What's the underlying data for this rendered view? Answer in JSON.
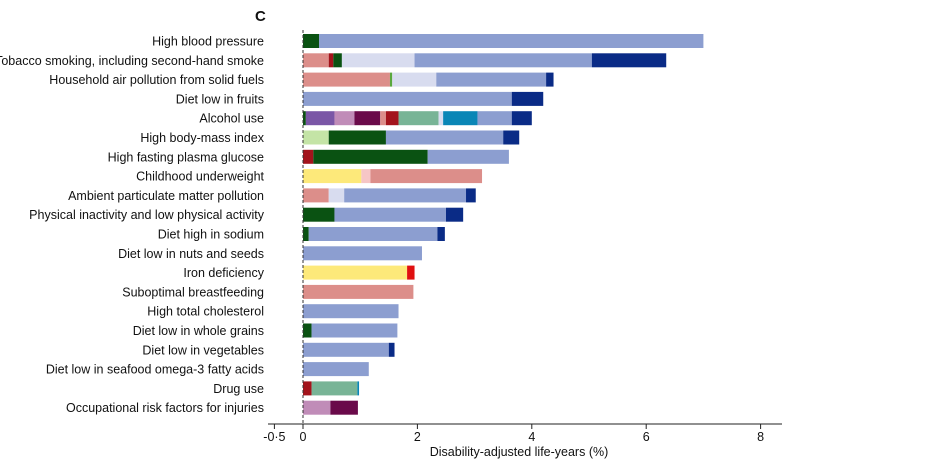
{
  "chart_data": {
    "type": "bar",
    "orientation": "horizontal",
    "stacked": true,
    "panel_label": "C",
    "title": "",
    "xlabel": "Disability-adjusted life-years (%)",
    "ylabel": "",
    "xlim": [
      -0.5,
      8.4
    ],
    "xticks": [
      -0.5,
      0,
      2,
      4,
      6,
      8
    ],
    "xtick_labels": [
      "-0·5",
      "0",
      "2",
      "4",
      "6",
      "8"
    ],
    "legend": "none",
    "segment_colors": {
      "dark_green": "#0a5212",
      "steel_blue": "#8c9ed0",
      "navy": "#0a2b86",
      "salmon": "#dc8e8a",
      "crimson": "#a3141c",
      "lavender": "#d8dcef",
      "mint_green": "#c4e4a6",
      "grass_green": "#5aa83e",
      "purple": "#7a56a6",
      "mauve": "#c08cb8",
      "plum": "#6a0a4a",
      "sage": "#78b496",
      "teal": "#0a86b6",
      "yellow": "#fde97a",
      "pink_pale": "#f6c6c6",
      "red": "#e01010"
    },
    "categories": [
      {
        "label": "High blood pressure",
        "segments": [
          {
            "color": "#0a5212",
            "value": 0.28
          },
          {
            "color": "#8c9ed0",
            "value": 6.72
          }
        ]
      },
      {
        "label": "Tobacco smoking, including second-hand smoke",
        "segments": [
          {
            "color": "#dc8e8a",
            "value": 0.45
          },
          {
            "color": "#a3141c",
            "value": 0.08
          },
          {
            "color": "#0a5212",
            "value": 0.15
          },
          {
            "color": "#d8dcef",
            "value": 1.27
          },
          {
            "color": "#8c9ed0",
            "value": 3.1
          },
          {
            "color": "#0a2b86",
            "value": 1.3
          }
        ]
      },
      {
        "label": "Household air pollution from solid fuels",
        "segments": [
          {
            "color": "#dc8e8a",
            "value": 1.52
          },
          {
            "color": "#5aa83e",
            "value": 0.04
          },
          {
            "color": "#d8dcef",
            "value": 0.77
          },
          {
            "color": "#8c9ed0",
            "value": 1.92
          },
          {
            "color": "#0a2b86",
            "value": 0.13
          }
        ]
      },
      {
        "label": "Diet low in fruits",
        "segments": [
          {
            "color": "#8c9ed0",
            "value": 3.65
          },
          {
            "color": "#0a2b86",
            "value": 0.55
          }
        ]
      },
      {
        "label": "Alcohol use",
        "segments": [
          {
            "color": "#0a5212",
            "value": 0.05
          },
          {
            "color": "#7a56a6",
            "value": 0.5
          },
          {
            "color": "#c08cb8",
            "value": 0.35
          },
          {
            "color": "#6a0a4a",
            "value": 0.45
          },
          {
            "color": "#dc8e8a",
            "value": 0.1
          },
          {
            "color": "#a3141c",
            "value": 0.22
          },
          {
            "color": "#78b496",
            "value": 0.7
          },
          {
            "color": "#d8dcef",
            "value": 0.08
          },
          {
            "color": "#0a86b6",
            "value": 0.6
          },
          {
            "color": "#8c9ed0",
            "value": 0.6
          },
          {
            "color": "#0a2b86",
            "value": 0.35
          }
        ]
      },
      {
        "label": "High body-mass index",
        "segments": [
          {
            "color": "#c4e4a6",
            "value": 0.45
          },
          {
            "color": "#0a5212",
            "value": 1.0
          },
          {
            "color": "#8c9ed0",
            "value": 2.05
          },
          {
            "color": "#0a2b86",
            "value": 0.28
          }
        ]
      },
      {
        "label": "High fasting plasma glucose",
        "segments": [
          {
            "color": "#a3141c",
            "value": 0.18
          },
          {
            "color": "#0a5212",
            "value": 2.0
          },
          {
            "color": "#8c9ed0",
            "value": 1.42
          }
        ]
      },
      {
        "label": "Childhood underweight",
        "segments": [
          {
            "color": "#fde97a",
            "value": 1.02
          },
          {
            "color": "#f6c6c6",
            "value": 0.16
          },
          {
            "color": "#dc8e8a",
            "value": 1.95
          }
        ]
      },
      {
        "label": "Ambient particulate matter pollution",
        "segments": [
          {
            "color": "#dc8e8a",
            "value": 0.45
          },
          {
            "color": "#d8dcef",
            "value": 0.27
          },
          {
            "color": "#8c9ed0",
            "value": 2.13
          },
          {
            "color": "#0a2b86",
            "value": 0.17
          }
        ]
      },
      {
        "label": "Physical inactivity and low physical activity",
        "segments": [
          {
            "color": "#0a5212",
            "value": 0.55
          },
          {
            "color": "#8c9ed0",
            "value": 1.95
          },
          {
            "color": "#0a2b86",
            "value": 0.3
          }
        ]
      },
      {
        "label": "Diet high in sodium",
        "segments": [
          {
            "color": "#0a5212",
            "value": 0.1
          },
          {
            "color": "#8c9ed0",
            "value": 2.25
          },
          {
            "color": "#0a2b86",
            "value": 0.13
          }
        ]
      },
      {
        "label": "Diet low in nuts and seeds",
        "segments": [
          {
            "color": "#8c9ed0",
            "value": 2.08
          }
        ]
      },
      {
        "label": "Iron deficiency",
        "segments": [
          {
            "color": "#fde97a",
            "value": 1.82
          },
          {
            "color": "#e01010",
            "value": 0.13
          }
        ]
      },
      {
        "label": "Suboptimal breastfeeding",
        "segments": [
          {
            "color": "#dc8e8a",
            "value": 1.93
          }
        ]
      },
      {
        "label": "High total cholesterol",
        "segments": [
          {
            "color": "#8c9ed0",
            "value": 1.67
          }
        ]
      },
      {
        "label": "Diet low in whole grains",
        "segments": [
          {
            "color": "#0a5212",
            "value": 0.15
          },
          {
            "color": "#8c9ed0",
            "value": 1.5
          }
        ]
      },
      {
        "label": "Diet low in vegetables",
        "segments": [
          {
            "color": "#8c9ed0",
            "value": 1.5
          },
          {
            "color": "#0a2b86",
            "value": 0.1
          }
        ]
      },
      {
        "label": "Diet low in seafood omega-3 fatty acids",
        "segments": [
          {
            "color": "#8c9ed0",
            "value": 1.15
          }
        ]
      },
      {
        "label": "Drug use",
        "segments": [
          {
            "color": "#a3141c",
            "value": 0.15
          },
          {
            "color": "#78b496",
            "value": 0.8
          },
          {
            "color": "#0a86b6",
            "value": 0.03
          }
        ]
      },
      {
        "label": "Occupational risk factors for injuries",
        "segments": [
          {
            "color": "#c08cb8",
            "value": 0.48
          },
          {
            "color": "#6a0a4a",
            "value": 0.48
          }
        ]
      }
    ]
  }
}
